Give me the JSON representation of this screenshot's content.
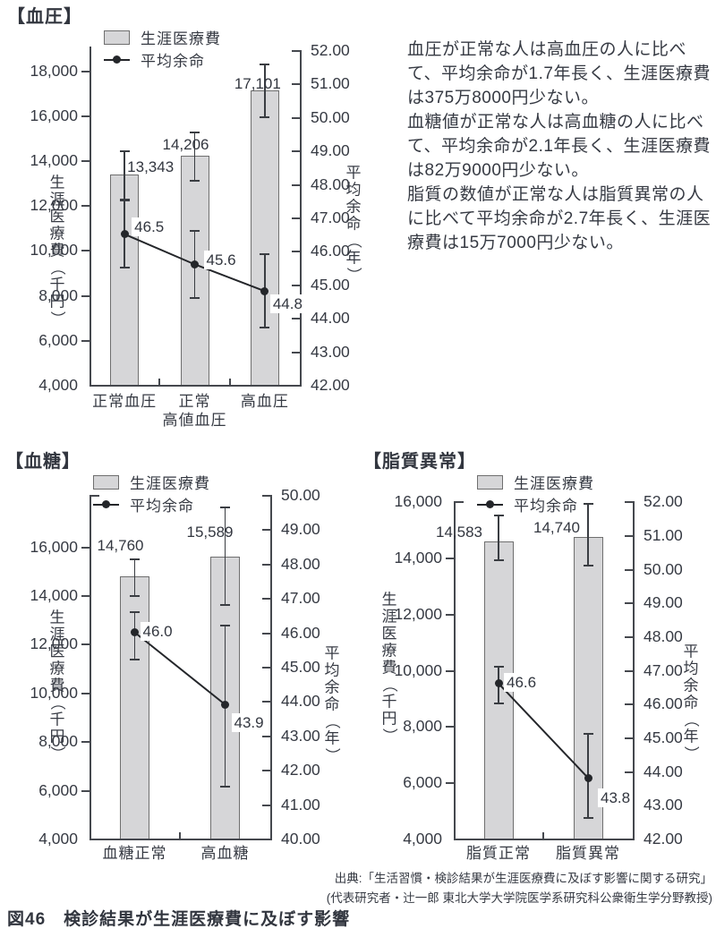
{
  "page": {
    "caption": "図46　検診結果が生涯医療費に及ぼす影響",
    "source_line1": "出典:「生活習慣・検診結果が生涯医療費に及ぼす影響に関する研究」",
    "source_line2": "(代表研究者・辻一郎 東北大学大学院医学系研究科公衆衛生学分野教授)"
  },
  "summary_text": {
    "sentences": [
      "血圧が正常な人は高血圧の人に比べて、平均余命が1.7年長く、生涯医療費は375万8000円少ない。",
      "血糖値が正常な人は高血糖の人に比べて、平均余命が2.1年長く、生涯医療費は82万9000円少ない。",
      "脂質の数値が正常な人は脂質異常の人に比べて平均余命が2.7年長く、生涯医療費は15万7000円少ない。"
    ]
  },
  "legend": {
    "bar_label": "生涯医療費",
    "line_label": "平均余命"
  },
  "colors": {
    "bar_fill": "#d6d6d8",
    "bar_border": "#6f6f6f",
    "line_color": "#24262a",
    "axis_color": "#45484e",
    "text_color": "#363a43",
    "background": "#ffffff"
  },
  "chart_data": [
    {
      "id": "blood-pressure",
      "type": "bar",
      "title": "【血圧】",
      "categories": [
        "正常血圧",
        "正常\n高値血圧",
        "高血圧"
      ],
      "bar_series": {
        "name": "生涯医療費",
        "values": [
          13343,
          14206,
          17101
        ],
        "labels": [
          "13,343",
          "14,206",
          "17,101"
        ],
        "error_low": [
          12250,
          13100,
          15900
        ],
        "error_high": [
          14400,
          15250,
          18250
        ]
      },
      "line_series": {
        "name": "平均余命",
        "values": [
          46.5,
          45.6,
          44.8
        ],
        "labels": [
          "46.5",
          "45.6",
          "44.8"
        ],
        "error_low": [
          45.5,
          44.6,
          43.7
        ],
        "error_high": [
          47.5,
          46.6,
          45.9
        ]
      },
      "left_axis": {
        "title": "生涯医療費（千円）",
        "min": 4000,
        "max": 18000,
        "step": 2000
      },
      "right_axis": {
        "title": "平均余命（年）",
        "min": 42,
        "max": 52,
        "step": 1
      }
    },
    {
      "id": "blood-sugar",
      "type": "bar",
      "title": "【血糖】",
      "categories": [
        "血糖正常",
        "高血糖"
      ],
      "bar_series": {
        "name": "生涯医療費",
        "values": [
          14760,
          15589
        ],
        "labels": [
          "14,760",
          "15,589"
        ],
        "error_low": [
          13950,
          13600
        ],
        "error_high": [
          15460,
          17600
        ]
      },
      "line_series": {
        "name": "平均余命",
        "values": [
          46.0,
          43.9
        ],
        "labels": [
          "46.0",
          "43.9"
        ],
        "error_low": [
          45.2,
          41.5
        ],
        "error_high": [
          46.6,
          46.2
        ]
      },
      "left_axis": {
        "title": "生涯医療費（千円）",
        "min": 4000,
        "max": 16000,
        "step": 2000
      },
      "right_axis": {
        "title": "平均余命（年）",
        "min": 40,
        "max": 50,
        "step": 1
      }
    },
    {
      "id": "lipid-abnormality",
      "type": "bar",
      "title": "【脂質異常】",
      "categories": [
        "脂質正常",
        "脂質異常"
      ],
      "bar_series": {
        "name": "生涯医療費",
        "values": [
          14583,
          14740
        ],
        "labels": [
          "14,583",
          "14,740"
        ],
        "error_low": [
          13900,
          13700
        ],
        "error_high": [
          15500,
          15900
        ]
      },
      "line_series": {
        "name": "平均余命",
        "values": [
          46.6,
          43.8
        ],
        "labels": [
          "46.6",
          "43.8"
        ],
        "error_low": [
          46.0,
          42.6
        ],
        "error_high": [
          47.1,
          45.1
        ]
      },
      "left_axis": {
        "title": "生涯医療費（千円）",
        "min": 4000,
        "max": 16000,
        "step": 2000
      },
      "right_axis": {
        "title": "平均余命（年）",
        "min": 42,
        "max": 52,
        "step": 1
      }
    }
  ]
}
